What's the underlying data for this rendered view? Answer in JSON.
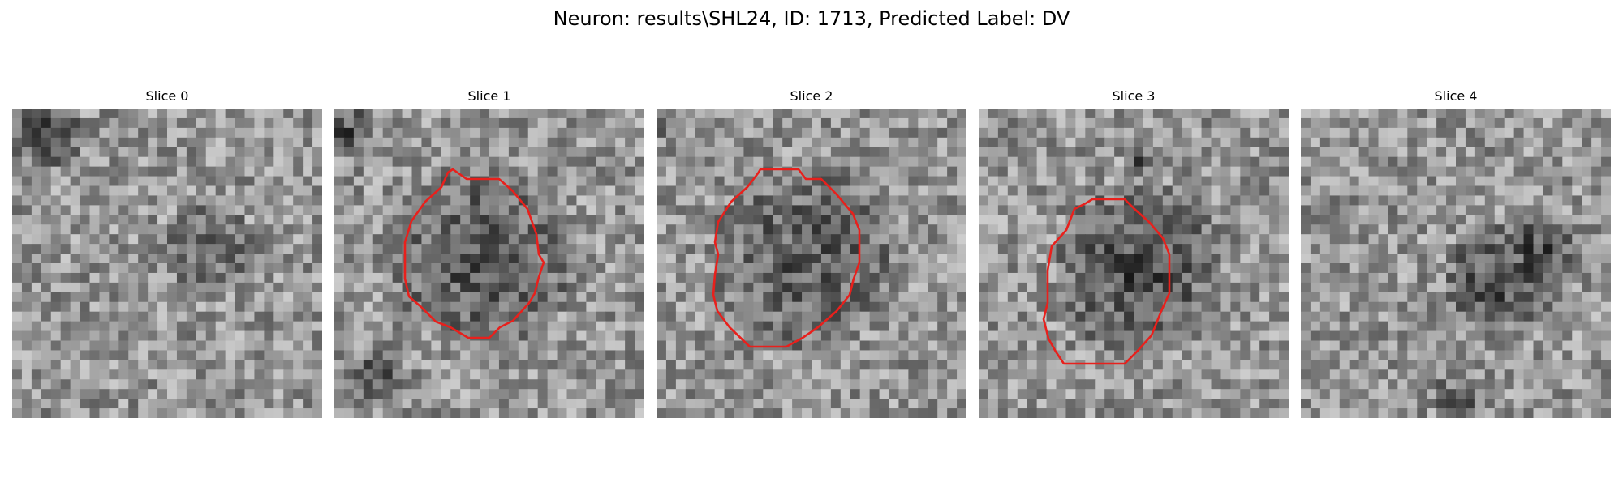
{
  "figure": {
    "title": "Neuron: results\\SHL24, ID: 1713, Predicted Label: DV"
  },
  "panels": [
    {
      "title": "Slice 0",
      "has_contour": false
    },
    {
      "title": "Slice 1",
      "has_contour": true
    },
    {
      "title": "Slice 2",
      "has_contour": true
    },
    {
      "title": "Slice 3",
      "has_contour": true
    },
    {
      "title": "Slice 4",
      "has_contour": false
    }
  ],
  "style": {
    "contour_color": "#e8201c",
    "colormap": "grayscale"
  }
}
